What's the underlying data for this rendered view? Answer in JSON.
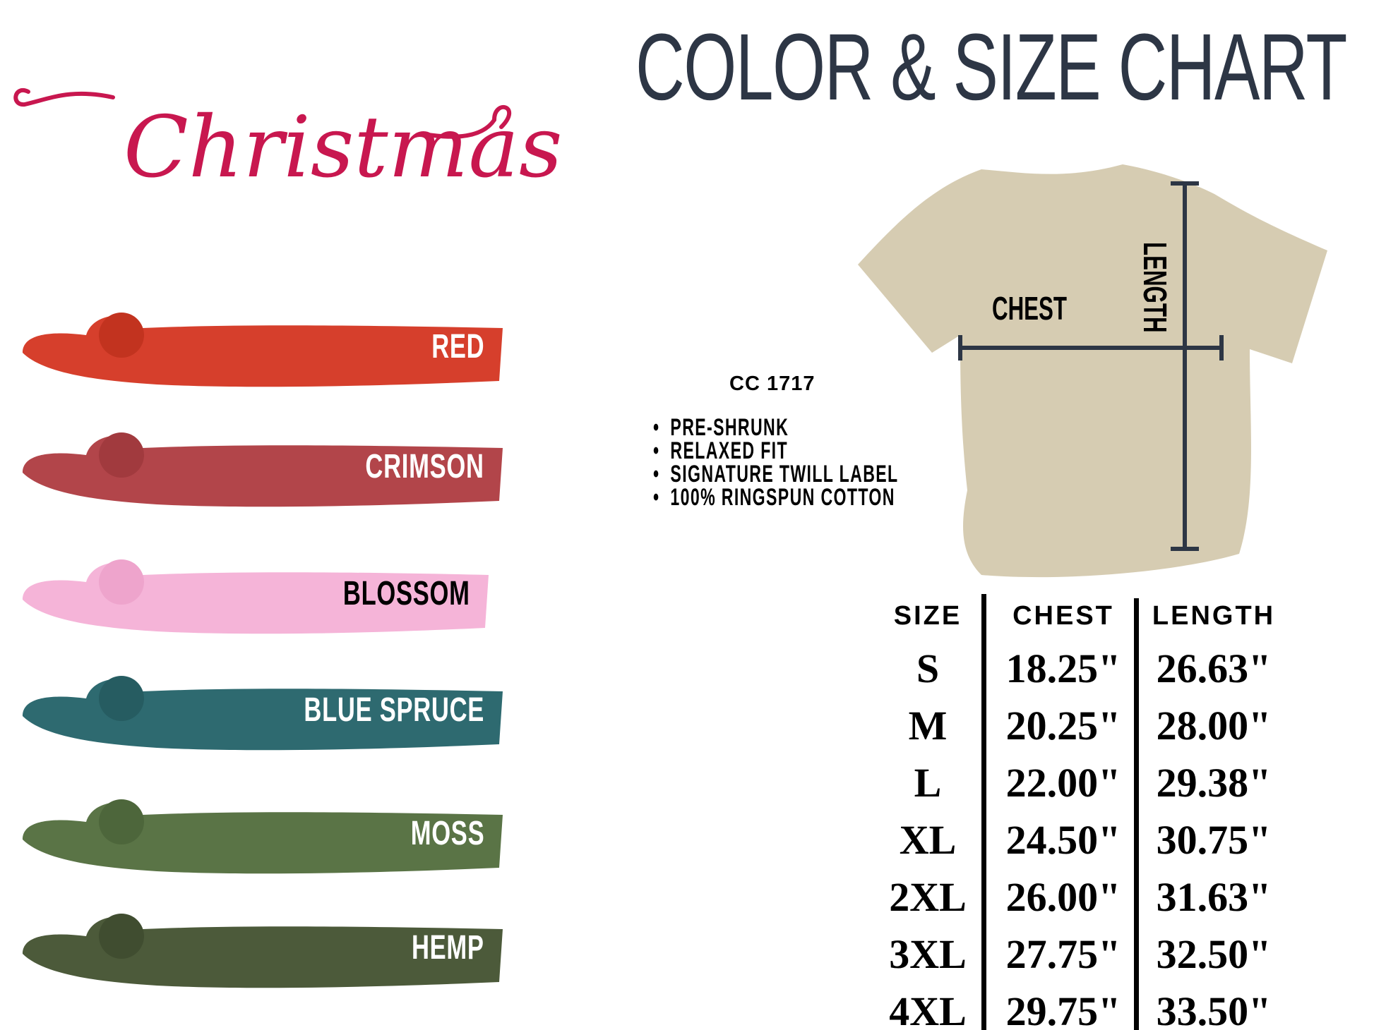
{
  "header": {
    "title": "COLOR & SIZE CHART",
    "collection": "Christmas"
  },
  "colors": [
    {
      "name": "RED",
      "hex": "#d63f2c",
      "text": "#ffffff"
    },
    {
      "name": "CRIMSON",
      "hex": "#b2454a",
      "text": "#ffffff"
    },
    {
      "name": "BLOSSOM",
      "hex": "#f5b4d8",
      "text": "#000000"
    },
    {
      "name": "BLUE SPRUCE",
      "hex": "#2e6a70",
      "text": "#ffffff"
    },
    {
      "name": "MOSS",
      "hex": "#5a7446",
      "text": "#ffffff"
    },
    {
      "name": "HEMP",
      "hex": "#4c5a3a",
      "text": "#ffffff"
    }
  ],
  "product": {
    "model": "CC 1717",
    "features": [
      "PRE-SHRUNK",
      "RELAXED FIT",
      "SIGNATURE TWILL LABEL",
      "100% RINGSPUN COTTON"
    ],
    "shirt_color": "#d6ccb2",
    "diagram_labels": {
      "chest": "CHEST",
      "length": "LENGTH"
    }
  },
  "size_table": {
    "headers": [
      "SIZE",
      "CHEST",
      "LENGTH"
    ],
    "rows": [
      [
        "S",
        "18.25\"",
        "26.63\""
      ],
      [
        "M",
        "20.25\"",
        "28.00\""
      ],
      [
        "L",
        "22.00\"",
        "29.38\""
      ],
      [
        "XL",
        "24.50\"",
        "30.75\""
      ],
      [
        "2XL",
        "26.00\"",
        "31.63\""
      ],
      [
        "3XL",
        "27.75\"",
        "32.50\""
      ],
      [
        "4XL",
        "29.75\"",
        "33.50\""
      ]
    ]
  }
}
